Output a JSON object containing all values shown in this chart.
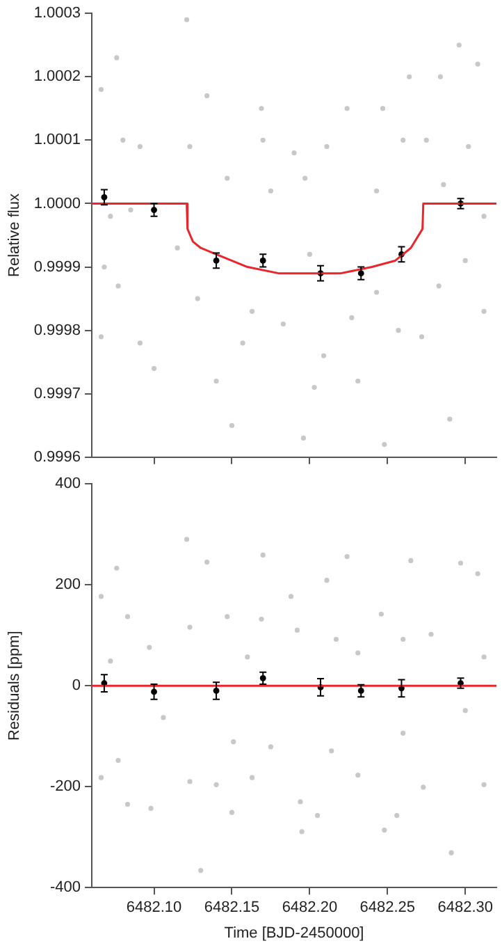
{
  "chart_data": [
    {
      "type": "scatter",
      "ylabel": "Relative flux",
      "xlim": [
        6482.06,
        6482.32
      ],
      "ylim": [
        0.9996,
        1.0003
      ],
      "xticks": [
        {
          "value": 6482.1,
          "label": null
        },
        {
          "value": 6482.15,
          "label": null
        },
        {
          "value": 6482.2,
          "label": null
        },
        {
          "value": 6482.25,
          "label": null
        },
        {
          "value": 6482.3,
          "label": null
        }
      ],
      "yticks": [
        0.9996,
        0.9997,
        0.9998,
        0.9999,
        {
          "value": 1,
          "label": "1.0000"
        },
        1.0001,
        1.0002,
        1.0003
      ],
      "tick_labels": "y",
      "grid": false,
      "legend": false,
      "marker": "circle",
      "series": [
        {
          "type": "scatter",
          "color": "#c8c8c8",
          "x": [
            6482.121,
            6482.076,
            6482.296,
            6482.308,
            6482.066,
            6482.134,
            6482.224,
            6482.169,
            6482.247,
            6482.264,
            6482.284,
            6482.08,
            6482.17,
            6482.211,
            6482.26,
            6482.275,
            6482.091,
            6482.19,
            6482.123,
            6482.302,
            6482.147,
            6482.175,
            6482.197,
            6482.243,
            6482.286,
            6482.072,
            6482.085,
            6482.312,
            6482.066,
            6482.14,
            6482.15,
            6482.196,
            6482.248,
            6482.29,
            6482.1,
            6482.091,
            6482.203,
            6482.231,
            6482.209,
            6482.157,
            6482.257,
            6482.272,
            6482.312,
            6482.128,
            6482.163,
            6482.183,
            6482.227,
            6482.243,
            6482.283,
            6482.077,
            6482.068,
            6482.115,
            6482.2,
            6482.3
          ],
          "values": [
            1.00029,
            1.00023,
            1.00025,
            1.00022,
            1.00018,
            1.00017,
            1.00015,
            1.00015,
            1.00015,
            1.0002,
            1.0002,
            1.0001,
            1.0001,
            1.00009,
            1.0001,
            1.0001,
            1.00009,
            1.00008,
            1.00009,
            1.00009,
            1.00004,
            1.00002,
            1.00004,
            1.00002,
            1.00003,
            0.99998,
            0.99999,
            0.99998,
            0.99979,
            0.99972,
            0.99965,
            0.99963,
            0.99962,
            0.99966,
            0.99974,
            0.99978,
            0.99971,
            0.99972,
            0.99976,
            0.99978,
            0.9998,
            0.99979,
            0.99983,
            0.99985,
            0.99983,
            0.99981,
            0.99982,
            0.99986,
            0.99987,
            0.99987,
            0.9999,
            0.99993,
            0.99992,
            0.99991
          ]
        },
        {
          "type": "line",
          "marker": "none",
          "color": "#e8262c",
          "x": [
            6482.06,
            6482.121,
            6482.1215,
            6482.125,
            6482.13,
            6482.14,
            6482.16,
            6482.18,
            6482.2,
            6482.22,
            6482.24,
            6482.255,
            6482.265,
            6482.2725,
            6482.273,
            6482.32
          ],
          "values": [
            1,
            1,
            0.99996,
            0.99994,
            0.99993,
            0.99992,
            0.9999,
            0.99989,
            0.99989,
            0.99989,
            0.9999,
            0.99991,
            0.99993,
            0.99996,
            1,
            1
          ]
        },
        {
          "type": "scatter",
          "color": "#000000",
          "x": [
            6482.068,
            6482.1,
            6482.14,
            6482.17,
            6482.207,
            6482.233,
            6482.259,
            6482.297
          ],
          "values": [
            1.00001,
            0.99999,
            0.99991,
            0.99991,
            0.99989,
            0.99989,
            0.99992,
            1
          ],
          "errors": [
            1.2e-05,
            1e-05,
            1.2e-05,
            1e-05,
            1.2e-05,
            1e-05,
            1.2e-05,
            8e-06
          ]
        }
      ]
    },
    {
      "type": "scatter",
      "xlabel": "Time [BJD-2450000]",
      "ylabel": "Residuals [ppm]",
      "xlim": [
        6482.06,
        6482.32
      ],
      "ylim": [
        -400,
        400
      ],
      "xticks": [
        {
          "value": 6482.1,
          "label": "6482.10"
        },
        {
          "value": 6482.15,
          "label": "6482.15"
        },
        {
          "value": 6482.2,
          "label": "6482.20"
        },
        {
          "value": 6482.25,
          "label": "6482.25"
        },
        {
          "value": 6482.3,
          "label": "6482.30"
        }
      ],
      "yticks": [
        -400,
        -200,
        0,
        200,
        400
      ],
      "grid": false,
      "legend": false,
      "marker": "circle",
      "series": [
        {
          "type": "scatter",
          "color": "#c8c8c8",
          "x": [
            6482.121,
            6482.076,
            6482.224,
            6482.265,
            6482.134,
            6482.17,
            6482.066,
            6482.188,
            6482.211,
            6482.297,
            6482.308,
            6482.083,
            6482.147,
            6482.169,
            6482.246,
            6482.278,
            6482.123,
            6482.192,
            6482.217,
            6482.26,
            6482.312,
            6482.097,
            6482.16,
            6482.231,
            6482.072,
            6482.066,
            6482.083,
            6482.098,
            6482.123,
            6482.14,
            6482.15,
            6482.163,
            6482.194,
            6482.205,
            6482.195,
            6482.248,
            6482.256,
            6482.291,
            6482.13,
            6482.312,
            6482.273,
            6482.231,
            6482.175,
            6482.214,
            6482.077,
            6482.106,
            6482.151,
            6482.3,
            6482.26
          ],
          "values": [
            290,
            233,
            256,
            248,
            245,
            259,
            177,
            177,
            209,
            243,
            222,
            137,
            137,
            132,
            142,
            102,
            116,
            110,
            92,
            92,
            57,
            76,
            57,
            65,
            49,
            -182,
            -235,
            -243,
            -190,
            -196,
            -251,
            -182,
            -230,
            -257,
            -289,
            -286,
            -257,
            -331,
            -366,
            -196,
            -201,
            -177,
            -121,
            -129,
            -148,
            -63,
            -111,
            -49,
            -94
          ]
        },
        {
          "type": "line",
          "marker": "none",
          "color": "#e8262c",
          "x": [
            6482.06,
            6482.32
          ],
          "values": [
            0,
            0
          ]
        },
        {
          "type": "scatter",
          "color": "#000000",
          "x": [
            6482.068,
            6482.1,
            6482.14,
            6482.17,
            6482.207,
            6482.233,
            6482.259,
            6482.297
          ],
          "values": [
            5,
            -12,
            -10,
            15,
            -3,
            -10,
            -5,
            5
          ],
          "errors": [
            17,
            15,
            17,
            12,
            17,
            12,
            17,
            10
          ]
        }
      ]
    }
  ]
}
